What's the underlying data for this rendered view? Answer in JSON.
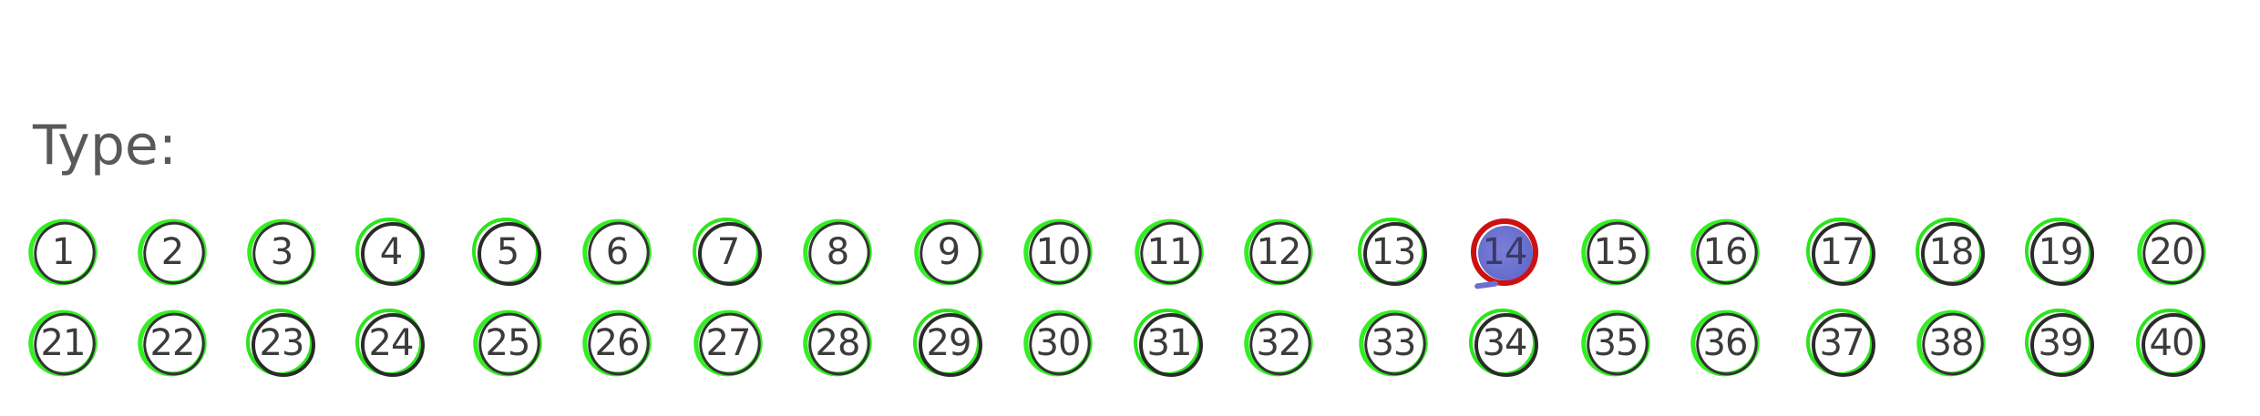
{
  "form": {
    "label": "Type:",
    "selected": "14",
    "options": [
      "1",
      "2",
      "3",
      "4",
      "5",
      "6",
      "7",
      "8",
      "9",
      "10",
      "11",
      "12",
      "13",
      "14",
      "15",
      "16",
      "17",
      "18",
      "19",
      "20",
      "21",
      "22",
      "23",
      "24",
      "25",
      "26",
      "27",
      "28",
      "29",
      "30",
      "31",
      "32",
      "33",
      "34",
      "35",
      "36",
      "37",
      "38",
      "39",
      "40"
    ]
  },
  "colors": {
    "label_text": "#595959",
    "ring_green": "#33ee22",
    "ring_dark": "#333333",
    "selected_ring": "#cc1111",
    "selected_fill": "#6a70cf",
    "number_text": "#3b3b3b"
  }
}
